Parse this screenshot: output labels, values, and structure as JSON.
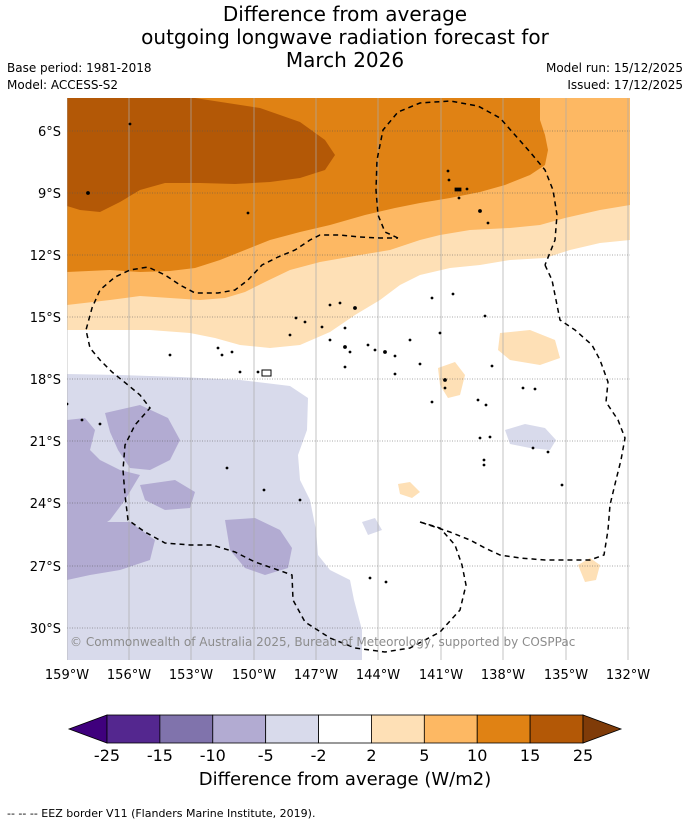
{
  "title": {
    "line1": "Difference from average",
    "line2": "outgoing longwave radiation forecast for",
    "line3": "March 2026"
  },
  "meta": {
    "base_period": "Base period: 1981-2018",
    "model": "Model: ACCESS-S2",
    "model_run": "Model run: 15/12/2025",
    "issued": "Issued: 17/12/2025"
  },
  "map": {
    "copyright": "© Commonwealth of Australia 2025, Bureau of Meteorology, supported by COSPPac",
    "lat_labels": [
      "6°S",
      "9°S",
      "12°S",
      "15°S",
      "18°S",
      "21°S",
      "24°S",
      "27°S",
      "30°S"
    ],
    "lon_labels": [
      "159°W",
      "156°W",
      "153°W",
      "150°W",
      "147°W",
      "144°W",
      "141°W",
      "138°W",
      "135°W",
      "132°W"
    ]
  },
  "colorbar": {
    "ticks": [
      "-25",
      "-15",
      "-10",
      "-5",
      "-2",
      "2",
      "5",
      "10",
      "15",
      "25"
    ],
    "colors": [
      "#3f007d",
      "#54278f",
      "#8073ac",
      "#b2abd2",
      "#d8daeb",
      "#ffffff",
      "#fee0b6",
      "#fdb863",
      "#e08214",
      "#b35806",
      "#7f3b08"
    ],
    "label": "Difference from average (W/m2)"
  },
  "footer": {
    "legend_text": "--  --  -- EEZ border V11 (Flanders Marine Institute, 2019)."
  }
}
